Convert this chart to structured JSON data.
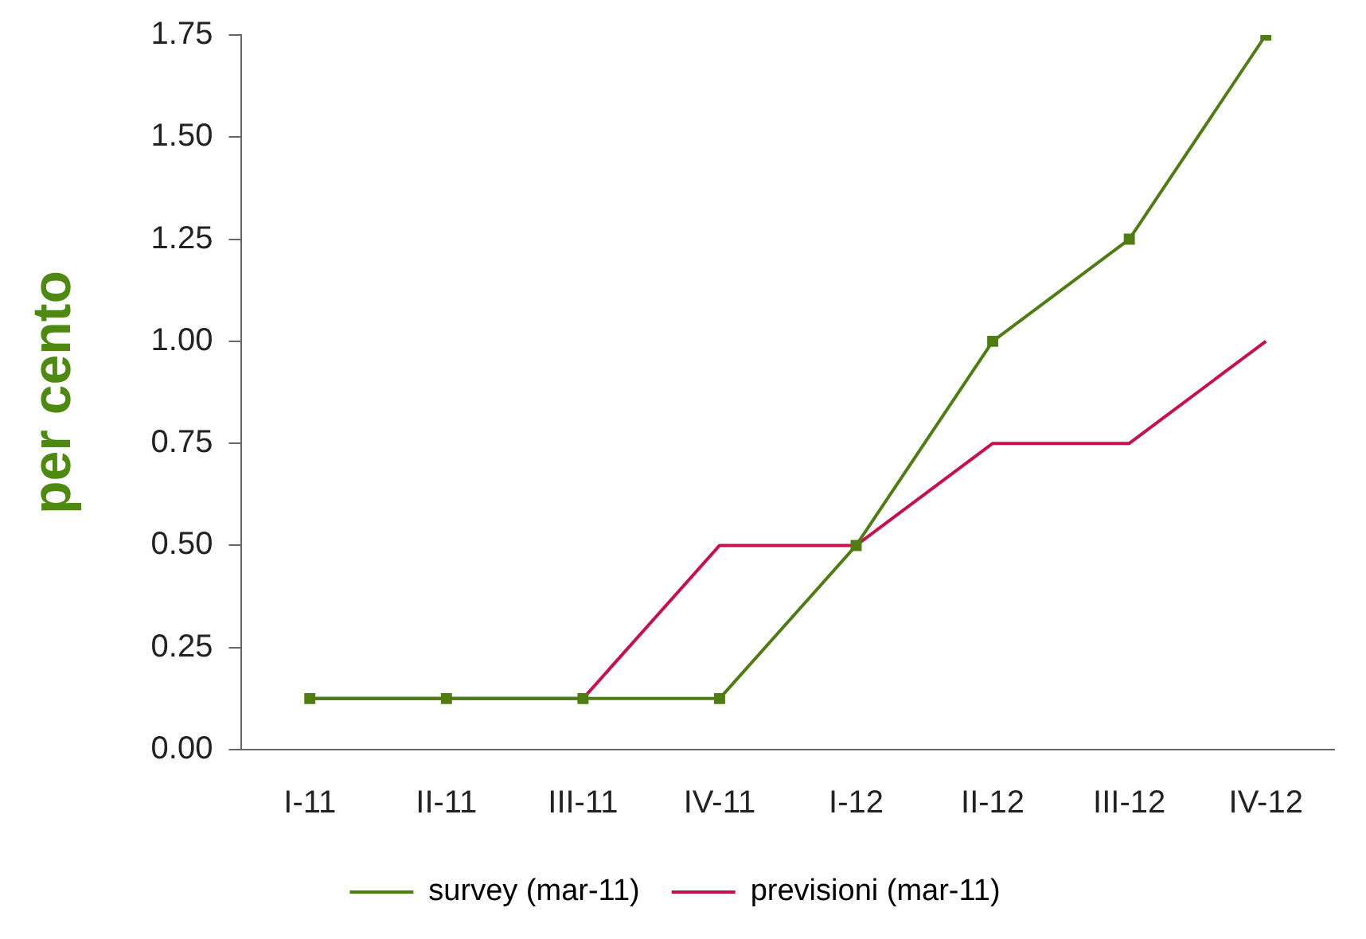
{
  "chart_data": {
    "type": "line",
    "ylabel": "per cento",
    "categories": [
      "I-11",
      "II-11",
      "III-11",
      "IV-11",
      "I-12",
      "II-12",
      "III-12",
      "IV-12"
    ],
    "series": [
      {
        "name": "survey (mar-11)",
        "color": "#4e7d12",
        "marker": "square",
        "values": [
          0.125,
          0.125,
          0.125,
          0.125,
          0.5,
          1.0,
          1.25,
          1.75
        ]
      },
      {
        "name": "previsioni (mar-11)",
        "color": "#c8104e",
        "marker": "none",
        "values": [
          0.125,
          0.125,
          0.125,
          0.5,
          0.5,
          0.75,
          0.75,
          1.0
        ]
      }
    ],
    "ylim": [
      0,
      1.75
    ],
    "yticks": [
      {
        "value": 0,
        "label": "0.00"
      },
      {
        "value": 0.25,
        "label": "0.25"
      },
      {
        "value": 0.5,
        "label": "0.50"
      },
      {
        "value": 0.75,
        "label": "0.75"
      },
      {
        "value": 1,
        "label": "1.00"
      },
      {
        "value": 1.25,
        "label": "1.25"
      },
      {
        "value": 1.5,
        "label": "1.50"
      },
      {
        "value": 1.75,
        "label": "1.75"
      }
    ],
    "grid": false,
    "legend": "bottom",
    "line_style": "solid"
  }
}
